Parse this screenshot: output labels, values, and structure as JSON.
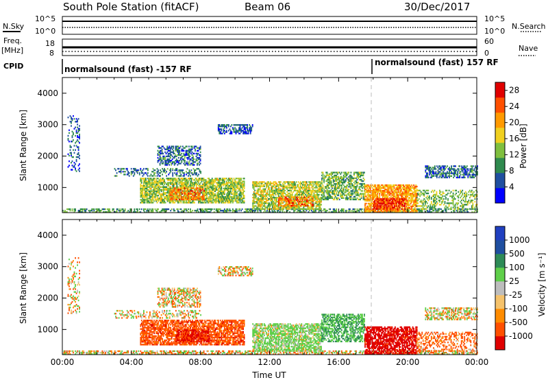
{
  "header": {
    "station": "South Pole Station (fitACF)",
    "beam": "Beam 06",
    "date": "30/Dec/2017"
  },
  "summary_panels": {
    "nsky_label": "N.Sky",
    "nsearch_label": "N.Search",
    "noise_ticks": [
      "10^5",
      "10^0"
    ],
    "freq_label_1": "Freq.",
    "freq_label_2": "[MHz]",
    "freq_ticks": [
      "18",
      "8"
    ],
    "nave_label": "Nave",
    "nave_ticks": [
      "60",
      "0"
    ],
    "cpid_label": "CPID",
    "cpid_left": "normalsound (fast) -157 RF",
    "cpid_right": "normalsound (fast) 157 RF"
  },
  "colors": {
    "power": [
      "#0000ff",
      "#1f4fa0",
      "#2f8a4e",
      "#7fbf3f",
      "#f0d020",
      "#ff9a00",
      "#ff5000",
      "#e00000"
    ],
    "velocity": [
      "#e00000",
      "#ff5000",
      "#ff8c00",
      "#f5c26b",
      "#bdbdbd",
      "#5fcf4a",
      "#2e8b57",
      "#1f4fa0",
      "#2040c0"
    ]
  },
  "chart_data": [
    {
      "type": "heatmap",
      "panel": "power",
      "ylabel": "Slant Range [km]",
      "yticks": [
        "1000",
        "2000",
        "3000",
        "4000"
      ],
      "ylim": [
        200,
        4500
      ],
      "xlim": [
        0,
        24
      ],
      "colorbar_label": "Power [dB]",
      "colorbar_ticks": [
        "4",
        "8",
        "12",
        "16",
        "20",
        "24",
        "28"
      ],
      "colorbar_range": [
        0,
        30
      ],
      "regions": [
        {
          "t0": 0.0,
          "t1": 24.0,
          "r0": 200,
          "r1": 300,
          "v": 10,
          "d": 0.55
        },
        {
          "t0": 4.5,
          "t1": 10.5,
          "r0": 500,
          "r1": 1300,
          "v": 14,
          "d": 0.75
        },
        {
          "t0": 6.2,
          "t1": 8.2,
          "r0": 600,
          "r1": 1000,
          "v": 22,
          "d": 0.6
        },
        {
          "t0": 11.0,
          "t1": 15.0,
          "r0": 300,
          "r1": 1200,
          "v": 15,
          "d": 0.7
        },
        {
          "t0": 12.5,
          "t1": 14.5,
          "r0": 400,
          "r1": 700,
          "v": 24,
          "d": 0.5
        },
        {
          "t0": 15.0,
          "t1": 17.5,
          "r0": 600,
          "r1": 1500,
          "v": 12,
          "d": 0.6
        },
        {
          "t0": 17.5,
          "t1": 20.5,
          "r0": 200,
          "r1": 1100,
          "v": 20,
          "d": 0.75
        },
        {
          "t0": 18.0,
          "t1": 19.8,
          "r0": 300,
          "r1": 650,
          "v": 27,
          "d": 0.7
        },
        {
          "t0": 20.5,
          "t1": 24.0,
          "r0": 300,
          "r1": 900,
          "v": 13,
          "d": 0.4
        },
        {
          "t0": 21.0,
          "t1": 24.0,
          "r0": 1300,
          "r1": 1700,
          "v": 7,
          "d": 0.55
        },
        {
          "t0": 5.5,
          "t1": 8.0,
          "r0": 1700,
          "r1": 2300,
          "v": 7,
          "d": 0.5
        },
        {
          "t0": 9.0,
          "t1": 11.0,
          "r0": 2700,
          "r1": 3000,
          "v": 6,
          "d": 0.55
        },
        {
          "t0": 3.0,
          "t1": 8.0,
          "r0": 1350,
          "r1": 1600,
          "v": 8,
          "d": 0.35
        },
        {
          "t0": 0.3,
          "t1": 1.0,
          "r0": 1500,
          "r1": 3300,
          "v": 6,
          "d": 0.25
        }
      ]
    },
    {
      "type": "heatmap",
      "panel": "velocity",
      "ylabel": "Slant Range [km]",
      "yticks": [
        "1000",
        "2000",
        "3000",
        "4000"
      ],
      "ylim": [
        200,
        4500
      ],
      "xlim": [
        0,
        24
      ],
      "xlabel": "Time UT",
      "xticks": [
        "00:00",
        "04:00",
        "08:00",
        "12:00",
        "16:00",
        "20:00",
        "00:00"
      ],
      "colorbar_label": "Velocity [m s⁻¹]",
      "colorbar_ticks": [
        "1000",
        "500",
        "100",
        "25",
        "-25",
        "-100",
        "-500",
        "-1000"
      ],
      "colorbar_range": [
        -1000,
        1000
      ],
      "regions": [
        {
          "t0": 0.0,
          "t1": 24.0,
          "r0": 200,
          "r1": 300,
          "v": 0,
          "d": 0.55
        },
        {
          "t0": 4.5,
          "t1": 10.5,
          "r0": 500,
          "r1": 1300,
          "v": -300,
          "d": 0.75
        },
        {
          "t0": 6.5,
          "t1": 8.5,
          "r0": 600,
          "r1": 1000,
          "v": -600,
          "d": 0.6
        },
        {
          "t0": 11.0,
          "t1": 15.0,
          "r0": 300,
          "r1": 1200,
          "v": 200,
          "d": 0.7
        },
        {
          "t0": 15.0,
          "t1": 17.5,
          "r0": 600,
          "r1": 1500,
          "v": 500,
          "d": 0.6
        },
        {
          "t0": 17.5,
          "t1": 20.5,
          "r0": 200,
          "r1": 1100,
          "v": -700,
          "d": 0.75
        },
        {
          "t0": 20.5,
          "t1": 24.0,
          "r0": 300,
          "r1": 900,
          "v": -200,
          "d": 0.4
        },
        {
          "t0": 21.0,
          "t1": 24.0,
          "r0": 1300,
          "r1": 1700,
          "v": 40,
          "d": 0.5
        },
        {
          "t0": 5.5,
          "t1": 8.0,
          "r0": 1700,
          "r1": 2300,
          "v": 0,
          "d": 0.5
        },
        {
          "t0": 9.0,
          "t1": 11.0,
          "r0": 2700,
          "r1": 3000,
          "v": 10,
          "d": 0.5
        },
        {
          "t0": 3.0,
          "t1": 8.0,
          "r0": 1350,
          "r1": 1600,
          "v": 30,
          "d": 0.35
        },
        {
          "t0": 0.3,
          "t1": 1.0,
          "r0": 1500,
          "r1": 3300,
          "v": 0,
          "d": 0.25
        }
      ]
    }
  ]
}
